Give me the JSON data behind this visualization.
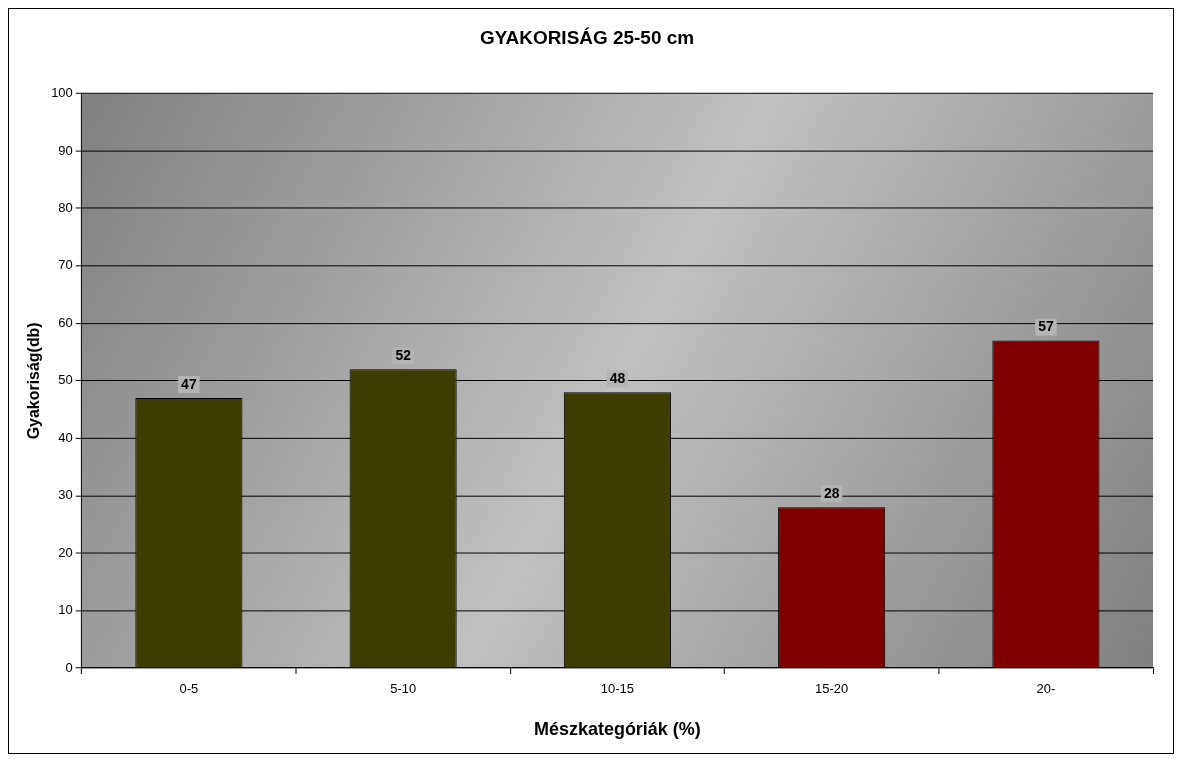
{
  "chart_data": {
    "type": "bar",
    "title": "GYAKORISÁG 25-50 cm",
    "xlabel": "Mészkategóriák (%)",
    "ylabel": "Gyakoriság(db)",
    "categories": [
      "0-5",
      "5-10",
      "10-15",
      "15-20",
      "20-"
    ],
    "values": [
      47,
      52,
      48,
      28,
      57
    ],
    "colors": [
      "#3d3d00",
      "#3d3d00",
      "#3d3d00",
      "#800000",
      "#800000"
    ],
    "ylim": [
      0,
      100
    ],
    "yticks": [
      0,
      10,
      20,
      30,
      40,
      50,
      60,
      70,
      80,
      90,
      100
    ],
    "grid": "y",
    "data_labels": true
  }
}
